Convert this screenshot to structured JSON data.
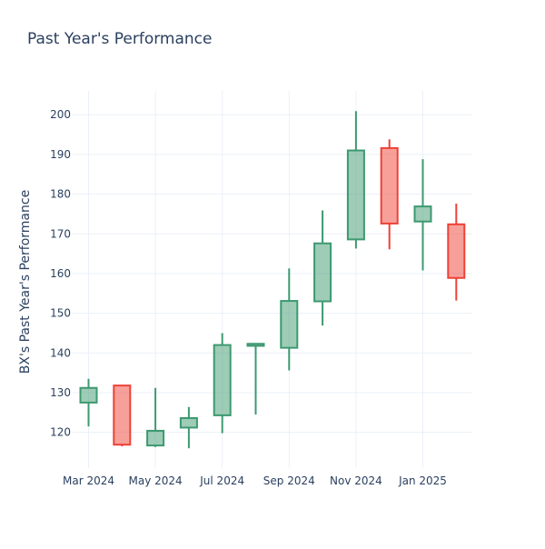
{
  "chart_data": {
    "type": "candlestick",
    "title": "Past Year's Performance",
    "xlabel": "",
    "ylabel": "BX's Past Year's Performance",
    "ylim": [
      111,
      206
    ],
    "yticks": [
      120,
      130,
      140,
      150,
      160,
      170,
      180,
      190,
      200
    ],
    "xtick_labels": [
      "Mar 2024",
      "May 2024",
      "Jul 2024",
      "Sep 2024",
      "Nov 2024",
      "Jan 2025"
    ],
    "grid": true,
    "increasing_color": "#3d9970",
    "decreasing_color": "#ef4136",
    "candles": [
      {
        "month": "2024-03",
        "open": 127.5,
        "high": 133.5,
        "low": 121.5,
        "close": 131.2
      },
      {
        "month": "2024-04",
        "open": 131.8,
        "high": 131.8,
        "low": 116.5,
        "close": 116.9
      },
      {
        "month": "2024-05",
        "open": 116.7,
        "high": 131.2,
        "low": 116.3,
        "close": 120.4
      },
      {
        "month": "2024-06",
        "open": 121.2,
        "high": 126.4,
        "low": 116.0,
        "close": 123.6
      },
      {
        "month": "2024-07",
        "open": 124.3,
        "high": 145.0,
        "low": 119.8,
        "close": 142.0
      },
      {
        "month": "2024-08",
        "open": 141.8,
        "high": 142.5,
        "low": 124.5,
        "close": 142.3
      },
      {
        "month": "2024-09",
        "open": 141.3,
        "high": 161.3,
        "low": 135.6,
        "close": 153.1
      },
      {
        "month": "2024-10",
        "open": 153.0,
        "high": 175.9,
        "low": 146.9,
        "close": 167.6
      },
      {
        "month": "2024-11",
        "open": 168.6,
        "high": 200.9,
        "low": 166.3,
        "close": 191.0
      },
      {
        "month": "2024-12",
        "open": 191.6,
        "high": 193.8,
        "low": 166.1,
        "close": 172.6
      },
      {
        "month": "2025-01",
        "open": 173.1,
        "high": 188.8,
        "low": 160.8,
        "close": 176.9
      },
      {
        "month": "2025-02",
        "open": 172.4,
        "high": 177.6,
        "low": 153.2,
        "close": 158.9
      }
    ]
  }
}
